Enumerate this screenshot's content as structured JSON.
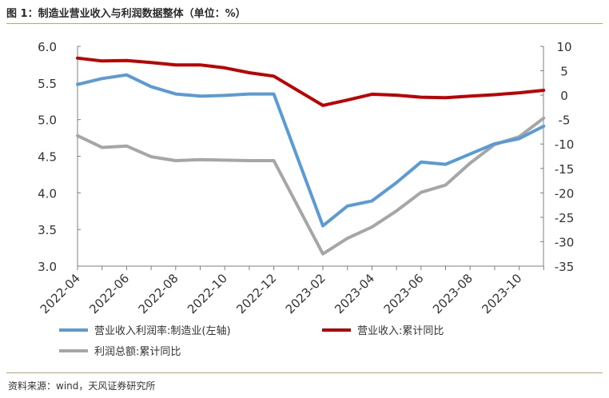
{
  "figure": {
    "title": "图 1：制造业营业收入与利润数据整体（单位：%）",
    "source": "资料来源：wind，天风证券研究所"
  },
  "chart_data": {
    "type": "line",
    "title": "",
    "xlabel": "",
    "ylabel_left": "",
    "ylabel_right": "",
    "x_tick_labels": [
      "2022-04",
      "2022-06",
      "2022-08",
      "2022-10",
      "2022-12",
      "2023-02",
      "2023-04",
      "2023-06",
      "2023-08",
      "2023-10"
    ],
    "y_left": {
      "lim": [
        3.0,
        6.0
      ],
      "ticks": [
        "3.0",
        "3.5",
        "4.0",
        "4.5",
        "5.0",
        "5.5",
        "6.0"
      ]
    },
    "y_right": {
      "lim": [
        -35,
        10
      ],
      "ticks": [
        "-35",
        "-30",
        "-25",
        "-20",
        "-15",
        "-10",
        "-5",
        "0",
        "5",
        "10"
      ]
    },
    "grid": false,
    "legend_position": "bottom",
    "series": [
      {
        "name": "营业收入利润率:制造业(左轴)",
        "axis": "left",
        "color": "#5b9bd5",
        "x": [
          "2022-04",
          "2022-05",
          "2022-06",
          "2022-07",
          "2022-08",
          "2022-09",
          "2022-10",
          "2022-11",
          "2022-12",
          "2023-02",
          "2023-03",
          "2023-04",
          "2023-05",
          "2023-06",
          "2023-07",
          "2023-08",
          "2023-09",
          "2023-10",
          "2023-11"
        ],
        "values": [
          5.48,
          5.56,
          5.61,
          5.45,
          5.35,
          5.32,
          5.33,
          5.35,
          5.35,
          3.55,
          3.82,
          3.89,
          4.14,
          4.42,
          4.39,
          4.53,
          4.67,
          4.74,
          4.91
        ]
      },
      {
        "name": "营业收入:累计同比",
        "axis": "right",
        "color": "#c00000",
        "x": [
          "2022-04",
          "2022-05",
          "2022-06",
          "2022-07",
          "2022-08",
          "2022-09",
          "2022-10",
          "2022-11",
          "2022-12",
          "2023-02",
          "2023-03",
          "2023-04",
          "2023-05",
          "2023-06",
          "2023-07",
          "2023-08",
          "2023-09",
          "2023-10",
          "2023-11"
        ],
        "values": [
          7.6,
          7.0,
          7.1,
          6.7,
          6.2,
          6.2,
          5.6,
          4.6,
          3.9,
          -2.1,
          -1.0,
          0.2,
          0.0,
          -0.4,
          -0.5,
          -0.2,
          0.1,
          0.5,
          1.0
        ]
      },
      {
        "name": "利润总额:累计同比",
        "axis": "right",
        "color": "#a6a6a6",
        "x": [
          "2022-04",
          "2022-05",
          "2022-06",
          "2022-07",
          "2022-08",
          "2022-09",
          "2022-10",
          "2022-11",
          "2022-12",
          "2023-02",
          "2023-03",
          "2023-04",
          "2023-05",
          "2023-06",
          "2023-07",
          "2023-08",
          "2023-09",
          "2023-10",
          "2023-11"
        ],
        "values": [
          -8.3,
          -10.7,
          -10.4,
          -12.6,
          -13.4,
          -13.2,
          -13.3,
          -13.4,
          -13.4,
          -32.5,
          -29.3,
          -27.0,
          -23.7,
          -19.9,
          -18.4,
          -13.9,
          -10.1,
          -8.5,
          -4.7
        ]
      }
    ]
  }
}
